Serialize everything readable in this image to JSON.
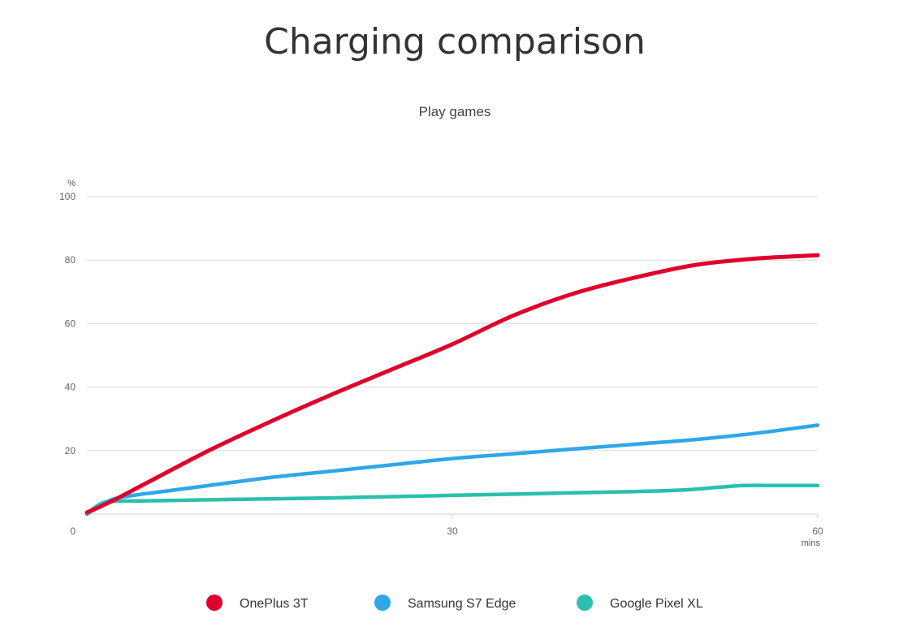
{
  "chart_data": {
    "type": "line",
    "title": "Charging comparison",
    "subtitle": "Play games",
    "ylabel": "%",
    "xlabel": "mins",
    "ylim": [
      0,
      100
    ],
    "xlim": [
      0,
      60
    ],
    "y_ticks": [
      "100",
      "80",
      "60",
      "40",
      "20",
      "0"
    ],
    "x_ticks": [
      "30",
      "60"
    ],
    "grid": true,
    "legend_position": "bottom",
    "series": [
      {
        "name": "OnePlus 3T",
        "color": "#e0002d",
        "x": [
          0,
          2,
          5,
          10,
          15,
          20,
          25,
          30,
          35,
          40,
          45,
          50,
          55,
          60
        ],
        "y": [
          0.5,
          4,
          10,
          20,
          29,
          37.5,
          45.5,
          53.5,
          62.5,
          69.5,
          74.5,
          78.5,
          80.5,
          81.5
        ]
      },
      {
        "name": "Samsung S7 Edge",
        "color": "#2ea7e8",
        "x": [
          0,
          2,
          4,
          6,
          10,
          15,
          20,
          25,
          30,
          35,
          40,
          45,
          50,
          55,
          60
        ],
        "y": [
          0,
          4.5,
          6,
          7,
          9,
          11.5,
          13.5,
          15.5,
          17.5,
          19,
          20.5,
          22,
          23.5,
          25.5,
          28
        ]
      },
      {
        "name": "Google Pixel XL",
        "color": "#2bbfae",
        "x": [
          0,
          1,
          2,
          5,
          10,
          15,
          20,
          25,
          30,
          35,
          40,
          45,
          49,
          52,
          54,
          57,
          60
        ],
        "y": [
          0,
          3,
          4,
          4.2,
          4.5,
          4.8,
          5.1,
          5.5,
          5.9,
          6.3,
          6.7,
          7.1,
          7.6,
          8.5,
          9,
          9,
          9
        ]
      }
    ]
  }
}
